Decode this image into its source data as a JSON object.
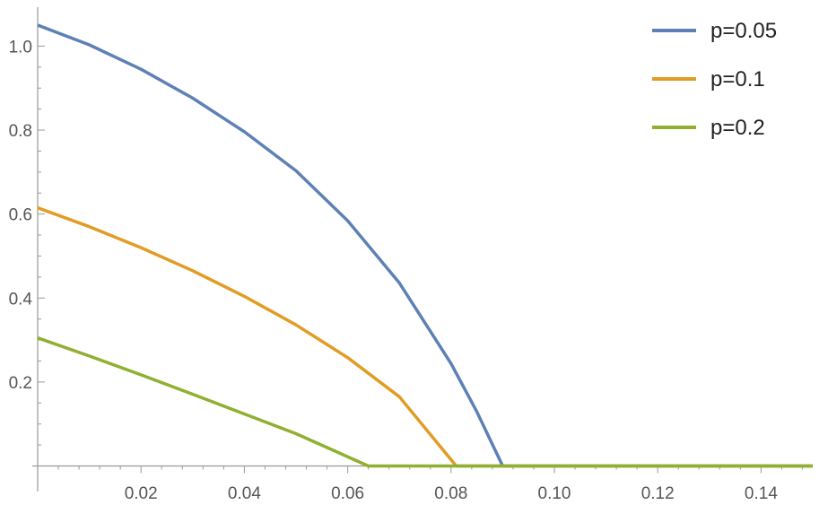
{
  "chart_data": {
    "type": "line",
    "title": "",
    "xlabel": "",
    "ylabel": "",
    "xlim": [
      0.0,
      0.15
    ],
    "ylim": [
      0.0,
      1.05
    ],
    "grid": false,
    "legend_position": "top-right",
    "x_ticks": [
      0.02,
      0.04,
      0.06,
      0.08,
      0.1,
      0.12,
      0.14
    ],
    "x_tick_labels": [
      "0.02",
      "0.04",
      "0.06",
      "0.08",
      "0.10",
      "0.12",
      "0.14"
    ],
    "y_ticks": [
      0.2,
      0.4,
      0.6,
      0.8,
      1.0
    ],
    "y_tick_labels": [
      "0.2",
      "0.4",
      "0.6",
      "0.8",
      "1.0"
    ],
    "series": [
      {
        "name": "p=0.05",
        "color": "#5e81b5",
        "x": [
          0.0,
          0.01,
          0.02,
          0.03,
          0.04,
          0.05,
          0.06,
          0.07,
          0.08,
          0.085,
          0.09,
          0.1,
          0.12,
          0.15
        ],
        "y": [
          1.05,
          1.003,
          0.945,
          0.876,
          0.796,
          0.703,
          0.584,
          0.436,
          0.244,
          0.129,
          0.0,
          0.0,
          0.0,
          0.0
        ]
      },
      {
        "name": "p=0.1",
        "color": "#e19c24",
        "x": [
          0.0,
          0.01,
          0.02,
          0.03,
          0.04,
          0.05,
          0.06,
          0.07,
          0.081,
          0.09,
          0.1,
          0.12,
          0.15
        ],
        "y": [
          0.615,
          0.57,
          0.52,
          0.465,
          0.404,
          0.336,
          0.258,
          0.165,
          0.0,
          0.0,
          0.0,
          0.0,
          0.0
        ]
      },
      {
        "name": "p=0.2",
        "color": "#8fb032",
        "x": [
          0.0,
          0.01,
          0.02,
          0.03,
          0.04,
          0.05,
          0.064,
          0.08,
          0.1,
          0.12,
          0.15
        ],
        "y": [
          0.305,
          0.262,
          0.217,
          0.171,
          0.124,
          0.077,
          0.0,
          0.0,
          0.0,
          0.0,
          0.0
        ]
      }
    ]
  }
}
